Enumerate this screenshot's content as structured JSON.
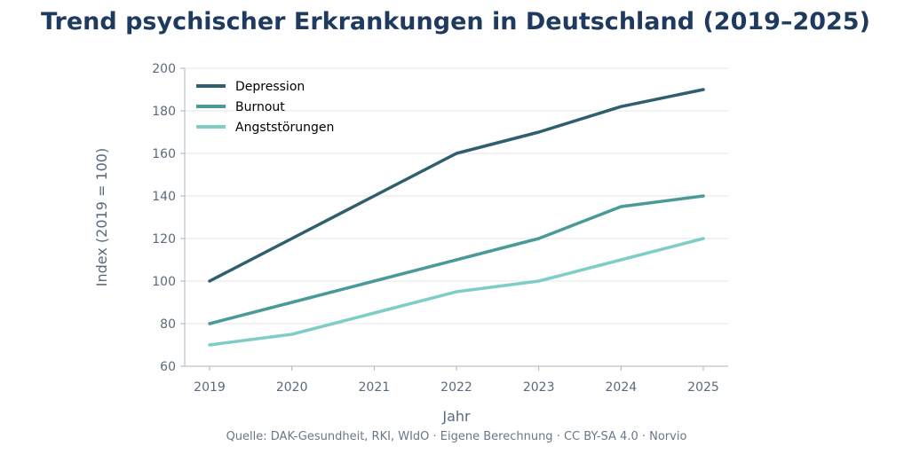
{
  "chart_data": {
    "type": "line",
    "title": "Trend psychischer Erkrankungen in Deutschland (2019–2025)",
    "xlabel": "Jahr",
    "ylabel": "Index (2019 = 100)",
    "x": [
      2019,
      2020,
      2021,
      2022,
      2023,
      2024,
      2025
    ],
    "ylim": [
      60,
      200
    ],
    "yticks": [
      60,
      80,
      100,
      120,
      140,
      160,
      180,
      200
    ],
    "grid": "horizontal",
    "legend_position": "top-left",
    "series": [
      {
        "name": "Depression",
        "values": [
          100,
          120,
          140,
          160,
          170,
          182,
          190
        ],
        "color": "#2e5f6e"
      },
      {
        "name": "Burnout",
        "values": [
          80,
          90,
          100,
          110,
          120,
          135,
          140
        ],
        "color": "#4a9a98"
      },
      {
        "name": "Angststörungen",
        "values": [
          70,
          75,
          85,
          95,
          100,
          110,
          120
        ],
        "color": "#7ecdc6"
      }
    ],
    "source": "Quelle: DAK-Gesundheit, RKI, WIdO · Eigene Berechnung · CC BY-SA 4.0 · Norvio"
  },
  "colors": {
    "title": "#1f3a5f",
    "axis_text": "#5a6a7e",
    "grid": "#e6e6e6"
  }
}
